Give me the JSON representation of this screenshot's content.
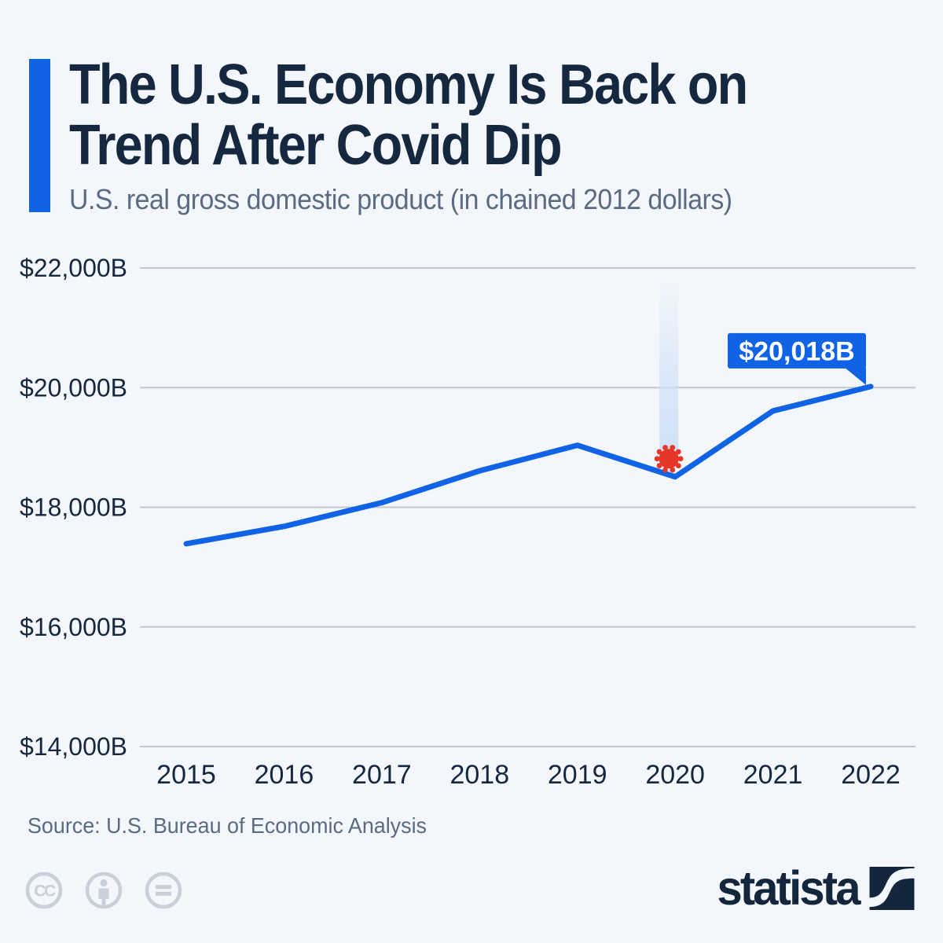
{
  "header": {
    "title_line1": "The U.S. Economy Is Back on",
    "title_line2": "Trend After Covid Dip",
    "subtitle": "U.S. real gross domestic product (in chained 2012 dollars)"
  },
  "chart_data": {
    "type": "line",
    "title": "U.S. real gross domestic product (in chained 2012 dollars)",
    "x": [
      2015,
      2016,
      2017,
      2018,
      2019,
      2020,
      2021,
      2022
    ],
    "series": [
      {
        "name": "U.S. real GDP (billions of chained 2012 dollars)",
        "values": [
          17390,
          17680,
          18077,
          18609,
          19036,
          18509,
          19610,
          20018
        ]
      }
    ],
    "ylim": [
      14000,
      22000
    ],
    "yticks": [
      {
        "value": 22000,
        "label": "$22,000B"
      },
      {
        "value": 20000,
        "label": "$20,000B"
      },
      {
        "value": 18000,
        "label": "$18,000B"
      },
      {
        "value": 16000,
        "label": "$16,000B"
      },
      {
        "value": 14000,
        "label": "$14,000B"
      }
    ],
    "grid": true,
    "legend": false,
    "annotations": {
      "end_label": {
        "text": "$20,018B",
        "x": 2022,
        "value": 20018
      },
      "covid_marker": {
        "x": 2020,
        "value": 18509,
        "icon": "coronavirus-icon"
      }
    }
  },
  "colors": {
    "background": "#f3f6fa",
    "accent_blue": "#1063e5",
    "line_blue": "#1063e5",
    "callout_blue": "#1063e5",
    "title_navy": "#16283f",
    "muted_slate": "#5a6b82",
    "gridline_gray": "#c3c9d2",
    "virus_red": "#e63529",
    "beam_blue": "#cfe1f7",
    "license_gray": "#c9d0d9",
    "brand_navy": "#13263c"
  },
  "source": "Source: U.S. Bureau of Economic Analysis",
  "footer": {
    "brand": "statista",
    "license_icons": [
      "cc-icon",
      "attribution-person-icon",
      "no-derivatives-equals-icon"
    ]
  }
}
